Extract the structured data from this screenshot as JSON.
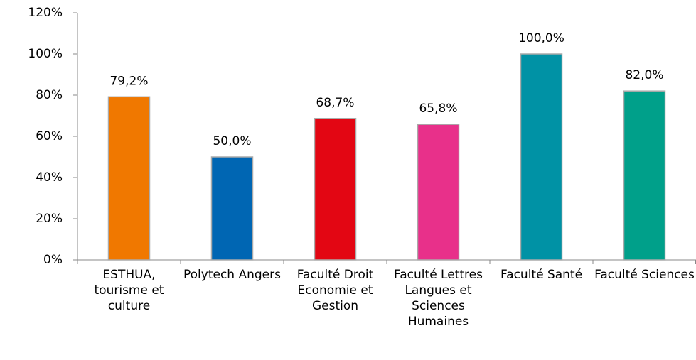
{
  "chart_data": {
    "type": "bar",
    "categories": [
      "ESTHUA, tourisme et culture",
      "Polytech Angers",
      "Faculté Droit Economie et Gestion",
      "Faculté Lettres Langues et Sciences Humaines",
      "Faculté Santé",
      "Faculté Sciences"
    ],
    "values": [
      79.2,
      50.0,
      68.7,
      65.8,
      100.0,
      82.0
    ],
    "value_labels": [
      "79,2%",
      "50,0%",
      "68,7%",
      "65,8%",
      "100,0%",
      "82,0%"
    ],
    "colors": [
      "#f07800",
      "#0066b3",
      "#e30613",
      "#e8308a",
      "#0092a5",
      "#00a08a"
    ],
    "ylim": [
      0,
      120
    ],
    "yticks": [
      {
        "value": 0,
        "label": "0%"
      },
      {
        "value": 20,
        "label": "20%"
      },
      {
        "value": 40,
        "label": "40%"
      },
      {
        "value": 60,
        "label": "60%"
      },
      {
        "value": 80,
        "label": "80%"
      },
      {
        "value": 100,
        "label": "100%"
      },
      {
        "value": 120,
        "label": "120%"
      }
    ],
    "grid": false
  }
}
